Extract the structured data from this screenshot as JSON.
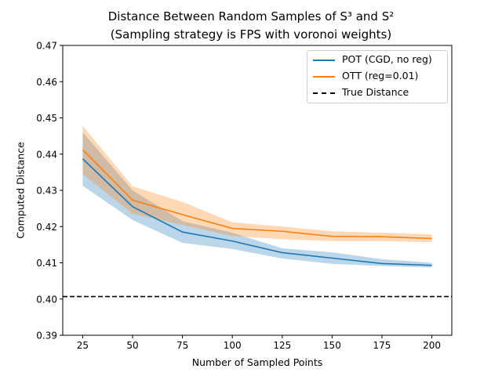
{
  "chart_data": {
    "type": "line",
    "title_line1": "Distance Between Random Samples of S³ and S²",
    "title_line2": "(Sampling strategy is FPS with voronoi weights)",
    "xlabel": "Number of Sampled Points",
    "ylabel": "Computed Distance",
    "xlim": [
      15,
      210
    ],
    "ylim": [
      0.39,
      0.47
    ],
    "x_ticks": [
      25,
      50,
      75,
      100,
      125,
      150,
      175,
      200
    ],
    "y_ticks": [
      0.39,
      0.4,
      0.41,
      0.42,
      0.43,
      0.44,
      0.45,
      0.46,
      0.47
    ],
    "x": [
      25,
      50,
      75,
      100,
      125,
      150,
      175,
      200
    ],
    "series": [
      {
        "name": "POT (CGD, no reg)",
        "color": "#1f77b4",
        "values": [
          0.4387,
          0.4255,
          0.4185,
          0.416,
          0.4128,
          0.4113,
          0.4098,
          0.4093
        ],
        "lower": [
          0.4313,
          0.4218,
          0.4155,
          0.4138,
          0.4112,
          0.4097,
          0.4091,
          0.4087
        ],
        "upper": [
          0.446,
          0.43,
          0.4215,
          0.4183,
          0.414,
          0.4129,
          0.411,
          0.41
        ]
      },
      {
        "name": "OTT (reg=0.01)",
        "color": "#ff7f0e",
        "values": [
          0.4412,
          0.4273,
          0.4233,
          0.4195,
          0.4187,
          0.4173,
          0.4172,
          0.4167
        ],
        "lower": [
          0.4345,
          0.4235,
          0.4205,
          0.4174,
          0.4165,
          0.416,
          0.416,
          0.4157
        ],
        "upper": [
          0.4478,
          0.4311,
          0.4268,
          0.4212,
          0.42,
          0.4187,
          0.4183,
          0.4178
        ]
      }
    ],
    "reference_line": {
      "name": "True Distance",
      "y": 0.4007,
      "style": "dashed",
      "color": "#000000"
    },
    "grid": false,
    "legend_position": "top-right"
  }
}
